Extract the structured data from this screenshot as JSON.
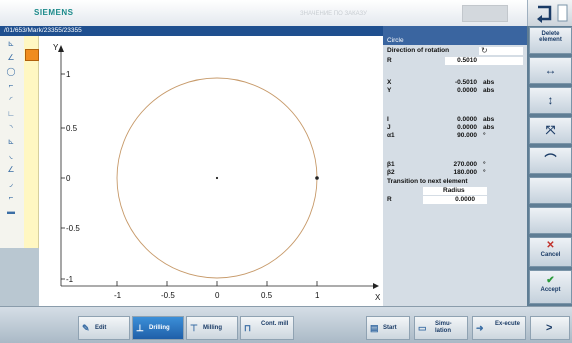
{
  "header": {
    "brand": "SIEMENS",
    "status_text": "ЗНАЧЕНИЕ ПО ЗАКАЗУ"
  },
  "path": "/01/653/Mark/23355/23355",
  "panel": {
    "title": "Circle",
    "direction_label": "Direction of rotation",
    "direction_icon": "rotate-cw-icon",
    "R_label": "R",
    "R_value": "0.5010",
    "X_label": "X",
    "X_value": "-0.5010",
    "X_unit": "abs",
    "Y_label": "Y",
    "Y_value": "0.0000",
    "Y_unit": "abs",
    "I_label": "I",
    "I_value": "0.0000",
    "I_unit": "abs",
    "J_label": "J",
    "J_value": "0.0000",
    "J_unit": "abs",
    "a1_label": "α1",
    "a1_value": "90.000",
    "a1_unit": "°",
    "b1_label": "β1",
    "b1_value": "270.000",
    "b1_unit": "°",
    "b2_label": "β2",
    "b2_value": "180.000",
    "b2_unit": "°",
    "transition_label": "Transition to next element",
    "transition_value": "Radius",
    "R2_label": "R",
    "R2_value": "0.0000"
  },
  "graph": {
    "y_axis_label": "Y",
    "x_axis_label": "X",
    "y_ticks": [
      "1",
      "0.5",
      "0",
      "-0.5",
      "-1"
    ],
    "x_ticks": [
      "-1",
      "-0.5",
      "0",
      "0.5",
      "1"
    ],
    "circle_radius": 0.5,
    "axis_color": "#222222",
    "circle_color": "#c79a6a"
  },
  "softkeys": {
    "delete_label": "Delete element",
    "cancel_label": "Cancel",
    "accept_label": "Accept"
  },
  "bottom": {
    "edit": "Edit",
    "drilling": "Drilling",
    "milling": "Milling",
    "cont_mill": "Cont. mill",
    "start": "Start",
    "simulation": "Simu-lation",
    "execute": "Ex-ecute",
    "more": ">"
  }
}
